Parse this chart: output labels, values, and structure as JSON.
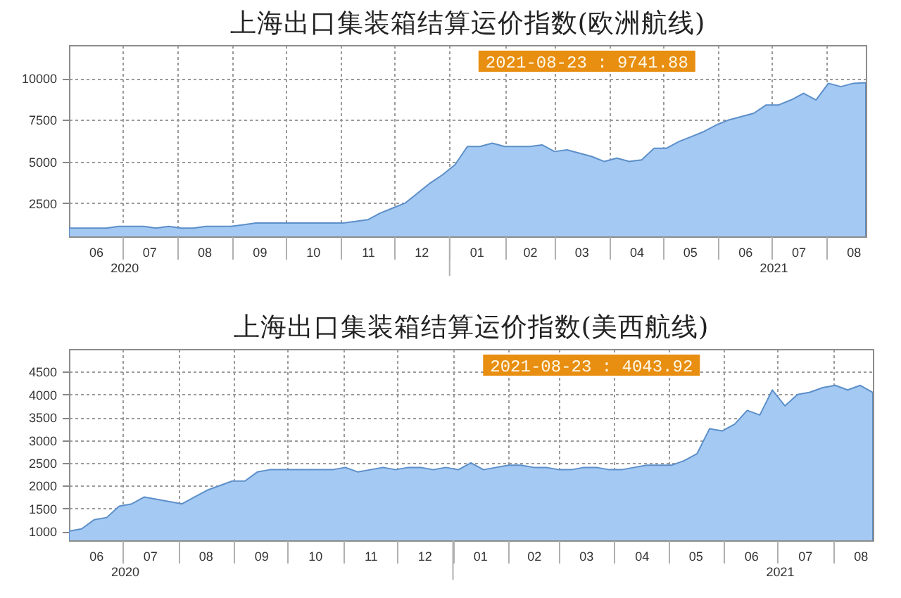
{
  "chart_data": [
    {
      "type": "area",
      "title": "上海出口集装箱结算运价指数(欧洲航线)",
      "x": [
        "2020-06-01",
        "2020-06-08",
        "2020-06-15",
        "2020-06-22",
        "2020-06-29",
        "2020-07-06",
        "2020-07-13",
        "2020-07-20",
        "2020-07-27",
        "2020-08-03",
        "2020-08-10",
        "2020-08-17",
        "2020-08-24",
        "2020-08-31",
        "2020-09-07",
        "2020-09-14",
        "2020-09-21",
        "2020-09-28",
        "2020-10-05",
        "2020-10-12",
        "2020-10-19",
        "2020-10-26",
        "2020-11-02",
        "2020-11-09",
        "2020-11-16",
        "2020-11-23",
        "2020-11-30",
        "2020-12-07",
        "2020-12-14",
        "2020-12-21",
        "2020-12-28",
        "2021-01-04",
        "2021-01-11",
        "2021-01-18",
        "2021-01-25",
        "2021-02-01",
        "2021-02-08",
        "2021-02-15",
        "2021-02-22",
        "2021-03-01",
        "2021-03-08",
        "2021-03-15",
        "2021-03-22",
        "2021-03-29",
        "2021-04-05",
        "2021-04-12",
        "2021-04-19",
        "2021-04-26",
        "2021-05-03",
        "2021-05-10",
        "2021-05-17",
        "2021-05-24",
        "2021-05-31",
        "2021-06-07",
        "2021-06-14",
        "2021-06-21",
        "2021-06-28",
        "2021-07-05",
        "2021-07-12",
        "2021-07-19",
        "2021-07-26",
        "2021-08-02",
        "2021-08-09",
        "2021-08-16",
        "2021-08-23"
      ],
      "values": [
        1000,
        1000,
        1000,
        1000,
        1100,
        1100,
        1100,
        1000,
        1100,
        1000,
        1000,
        1100,
        1100,
        1100,
        1200,
        1300,
        1300,
        1300,
        1300,
        1300,
        1300,
        1300,
        1300,
        1400,
        1500,
        1900,
        2200,
        2500,
        3100,
        3700,
        4200,
        4800,
        5900,
        5900,
        6100,
        5900,
        5900,
        5900,
        6000,
        5600,
        5700,
        5500,
        5300,
        5000,
        5200,
        5000,
        5100,
        5800,
        5800,
        6200,
        6500,
        6800,
        7200,
        7500,
        7700,
        7900,
        8400,
        8400,
        8700,
        9100,
        8700,
        9700,
        9500,
        9700,
        9741.88
      ],
      "color": "#a4c9f3",
      "xlim": [
        "2020-06-01",
        "2021-08-23"
      ],
      "xticks": [
        {
          "value": "2020-06-16",
          "label": "06"
        },
        {
          "value": "2020-07-01",
          "label": null
        },
        {
          "value": "2020-07-16",
          "label": "07"
        },
        {
          "value": "2020-08-01",
          "label": null
        },
        {
          "value": "2020-08-16",
          "label": "08"
        },
        {
          "value": "2020-09-01",
          "label": null
        },
        {
          "value": "2020-09-16",
          "label": "09"
        },
        {
          "value": "2020-10-01",
          "label": null
        },
        {
          "value": "2020-10-16",
          "label": "10"
        },
        {
          "value": "2020-11-01",
          "label": null
        },
        {
          "value": "2020-11-16",
          "label": "11"
        },
        {
          "value": "2020-12-01",
          "label": null
        },
        {
          "value": "2020-12-16",
          "label": "12"
        },
        {
          "value": "2021-01-01",
          "label": null
        },
        {
          "value": "2021-01-16",
          "label": "01"
        },
        {
          "value": "2021-02-01",
          "label": null
        },
        {
          "value": "2021-02-15",
          "label": "02"
        },
        {
          "value": "2021-03-01",
          "label": null
        },
        {
          "value": "2021-03-16",
          "label": "03"
        },
        {
          "value": "2021-04-01",
          "label": null
        },
        {
          "value": "2021-04-16",
          "label": "04"
        },
        {
          "value": "2021-05-01",
          "label": null
        },
        {
          "value": "2021-05-16",
          "label": "05"
        },
        {
          "value": "2021-06-01",
          "label": null
        },
        {
          "value": "2021-06-16",
          "label": "06"
        },
        {
          "value": "2021-07-01",
          "label": null
        },
        {
          "value": "2021-07-16",
          "label": "07"
        },
        {
          "value": "2021-08-01",
          "label": null
        },
        {
          "value": "2021-08-16",
          "label": "08"
        }
      ],
      "x2lim": [
        "2020-06-01",
        "2021-08-23"
      ],
      "x2ticks": [
        {
          "value": "2020-07-02",
          "label": "2020"
        },
        {
          "value": "2021-01-01",
          "label": null
        },
        {
          "value": "2021-07-02",
          "label": "2021"
        }
      ],
      "ylim": [
        500,
        12000
      ],
      "yticks": [
        2500,
        5000,
        7500,
        10000
      ],
      "grid": true,
      "annotations": [
        "2021-08-23 : 9741.88"
      ]
    },
    {
      "type": "area",
      "title": "上海出口集装箱结算运价指数(美西航线)",
      "x": [
        "2020-06-01",
        "2020-06-08",
        "2020-06-15",
        "2020-06-22",
        "2020-06-29",
        "2020-07-06",
        "2020-07-13",
        "2020-07-20",
        "2020-07-27",
        "2020-08-03",
        "2020-08-10",
        "2020-08-17",
        "2020-08-24",
        "2020-08-31",
        "2020-09-07",
        "2020-09-14",
        "2020-09-21",
        "2020-09-28",
        "2020-10-05",
        "2020-10-12",
        "2020-10-19",
        "2020-10-26",
        "2020-11-02",
        "2020-11-09",
        "2020-11-16",
        "2020-11-23",
        "2020-11-30",
        "2020-12-07",
        "2020-12-14",
        "2020-12-21",
        "2020-12-28",
        "2021-01-04",
        "2021-01-11",
        "2021-01-18",
        "2021-01-25",
        "2021-02-01",
        "2021-02-08",
        "2021-02-15",
        "2021-02-22",
        "2021-03-01",
        "2021-03-08",
        "2021-03-15",
        "2021-03-22",
        "2021-03-29",
        "2021-04-05",
        "2021-04-12",
        "2021-04-19",
        "2021-04-26",
        "2021-05-03",
        "2021-05-10",
        "2021-05-17",
        "2021-05-24",
        "2021-05-31",
        "2021-06-07",
        "2021-06-14",
        "2021-06-21",
        "2021-06-28",
        "2021-07-05",
        "2021-07-12",
        "2021-07-19",
        "2021-07-26",
        "2021-08-02",
        "2021-08-09",
        "2021-08-16",
        "2021-08-23"
      ],
      "values": [
        1000,
        1050,
        1250,
        1300,
        1550,
        1600,
        1750,
        1700,
        1650,
        1600,
        1750,
        1900,
        2000,
        2100,
        2100,
        2300,
        2350,
        2350,
        2350,
        2350,
        2350,
        2350,
        2400,
        2300,
        2350,
        2400,
        2350,
        2400,
        2400,
        2350,
        2400,
        2350,
        2500,
        2350,
        2400,
        2450,
        2450,
        2400,
        2400,
        2350,
        2350,
        2400,
        2400,
        2350,
        2350,
        2400,
        2450,
        2450,
        2450,
        2550,
        2700,
        3250,
        3200,
        3350,
        3650,
        3550,
        4100,
        3750,
        4000,
        4050,
        4150,
        4200,
        4100,
        4200,
        4043.92
      ],
      "color": "#a4c9f3",
      "xlim": [
        "2020-06-01",
        "2021-08-23"
      ],
      "xticks": [
        {
          "value": "2020-06-16",
          "label": "06"
        },
        {
          "value": "2020-07-01",
          "label": null
        },
        {
          "value": "2020-07-16",
          "label": "07"
        },
        {
          "value": "2020-08-01",
          "label": null
        },
        {
          "value": "2020-08-16",
          "label": "08"
        },
        {
          "value": "2020-09-01",
          "label": null
        },
        {
          "value": "2020-09-16",
          "label": "09"
        },
        {
          "value": "2020-10-01",
          "label": null
        },
        {
          "value": "2020-10-16",
          "label": "10"
        },
        {
          "value": "2020-11-01",
          "label": null
        },
        {
          "value": "2020-11-16",
          "label": "11"
        },
        {
          "value": "2020-12-01",
          "label": null
        },
        {
          "value": "2020-12-16",
          "label": "12"
        },
        {
          "value": "2021-01-01",
          "label": null
        },
        {
          "value": "2021-01-16",
          "label": "01"
        },
        {
          "value": "2021-02-01",
          "label": null
        },
        {
          "value": "2021-02-15",
          "label": "02"
        },
        {
          "value": "2021-03-01",
          "label": null
        },
        {
          "value": "2021-03-16",
          "label": "03"
        },
        {
          "value": "2021-04-01",
          "label": null
        },
        {
          "value": "2021-04-16",
          "label": "04"
        },
        {
          "value": "2021-05-01",
          "label": null
        },
        {
          "value": "2021-05-16",
          "label": "05"
        },
        {
          "value": "2021-06-01",
          "label": null
        },
        {
          "value": "2021-06-16",
          "label": "06"
        },
        {
          "value": "2021-07-01",
          "label": null
        },
        {
          "value": "2021-07-16",
          "label": "07"
        },
        {
          "value": "2021-08-01",
          "label": null
        },
        {
          "value": "2021-08-16",
          "label": "08"
        }
      ],
      "x2lim": [
        "2020-06-01",
        "2021-08-23"
      ],
      "x2ticks": [
        {
          "value": "2020-07-02",
          "label": "2020"
        },
        {
          "value": "2021-01-01",
          "label": null
        },
        {
          "value": "2021-07-02",
          "label": "2021"
        }
      ],
      "ylim": [
        800,
        5000
      ],
      "yticks": [
        1000,
        1500,
        2000,
        2500,
        3000,
        3500,
        4000,
        4500
      ],
      "grid": true,
      "annotations": [
        "2021-08-23 : 4043.92"
      ]
    }
  ]
}
